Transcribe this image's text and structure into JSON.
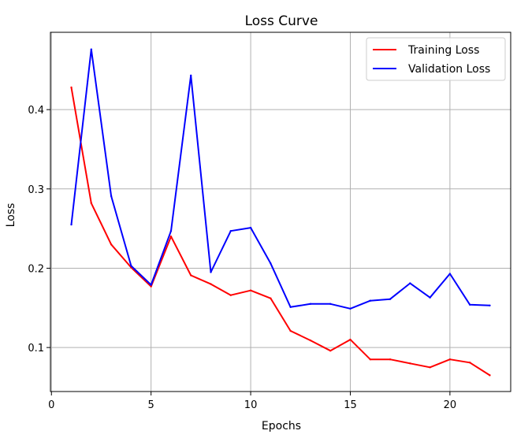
{
  "chart_data": {
    "type": "line",
    "title": "Loss Curve",
    "xlabel": "Epochs",
    "ylabel": "Loss",
    "xlim": [
      -0.05,
      23.05
    ],
    "ylim": [
      0.0445,
      0.4975
    ],
    "xticks": [
      0,
      5,
      10,
      15,
      20
    ],
    "yticks": [
      0.1,
      0.2,
      0.3,
      0.4
    ],
    "xtick_labels": [
      "0",
      "5",
      "10",
      "15",
      "20"
    ],
    "ytick_labels": [
      "0.1",
      "0.2",
      "0.3",
      "0.4"
    ],
    "grid": true,
    "legend_position": "top-right",
    "x": [
      1,
      2,
      3,
      4,
      5,
      6,
      7,
      8,
      9,
      10,
      11,
      12,
      13,
      14,
      15,
      16,
      17,
      18,
      19,
      20,
      21,
      22
    ],
    "series": [
      {
        "name": "Training Loss",
        "color": "#ff0000",
        "values": [
          0.428,
          0.282,
          0.23,
          0.201,
          0.177,
          0.24,
          0.191,
          0.18,
          0.166,
          0.172,
          0.162,
          0.121,
          0.109,
          0.096,
          0.11,
          0.085,
          0.085,
          0.08,
          0.075,
          0.085,
          0.081,
          0.065
        ]
      },
      {
        "name": "Validation Loss",
        "color": "#0000ff",
        "values": [
          0.255,
          0.476,
          0.291,
          0.203,
          0.179,
          0.247,
          0.443,
          0.195,
          0.247,
          0.251,
          0.206,
          0.151,
          0.155,
          0.155,
          0.149,
          0.159,
          0.161,
          0.181,
          0.163,
          0.193,
          0.154,
          0.153
        ]
      }
    ]
  }
}
